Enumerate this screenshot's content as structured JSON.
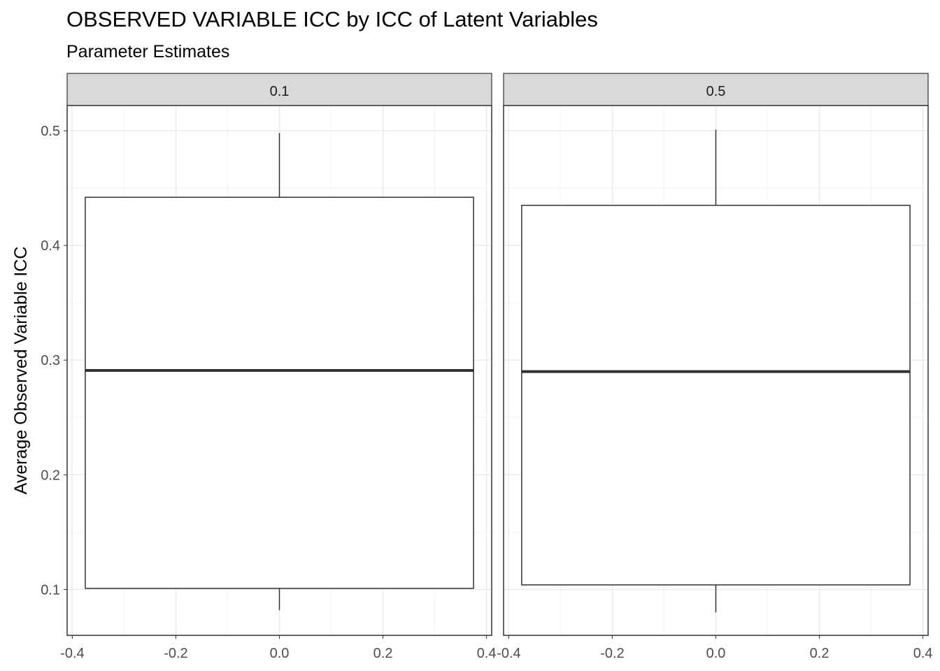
{
  "chart_data": {
    "type": "boxplot",
    "title": "OBSERVED VARIABLE ICC by ICC of Latent Variables",
    "subtitle": "Parameter Estimates",
    "xlabel": "",
    "ylabel": "Average Observed Variable ICC",
    "xlim": [
      -0.41,
      0.41
    ],
    "ylim": [
      0.06,
      0.522
    ],
    "x_ticks": [
      -0.4,
      -0.2,
      0.0,
      0.2,
      0.4
    ],
    "x_tick_labels": [
      "-0.4",
      "-0.2",
      "0.0",
      "0.2",
      "0.4"
    ],
    "y_ticks": [
      0.1,
      0.2,
      0.3,
      0.4,
      0.5
    ],
    "y_tick_labels": [
      "0.1",
      "0.2",
      "0.3",
      "0.4",
      "0.5"
    ],
    "grid": true,
    "theme": "bw",
    "box_x_range": [
      -0.375,
      0.375
    ],
    "facets": [
      {
        "label": "0.1",
        "whisker_low": 0.082,
        "q1": 0.101,
        "median": 0.291,
        "q3": 0.442,
        "whisker_high": 0.498
      },
      {
        "label": "0.5",
        "whisker_low": 0.08,
        "q1": 0.104,
        "median": 0.29,
        "q3": 0.435,
        "whisker_high": 0.501
      }
    ]
  }
}
